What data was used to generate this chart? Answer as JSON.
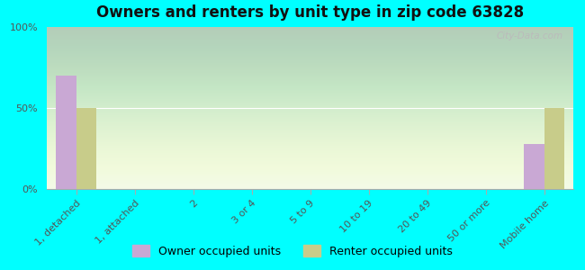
{
  "title": "Owners and renters by unit type in zip code 63828",
  "categories": [
    "1, detached",
    "1, attached",
    "2",
    "3 or 4",
    "5 to 9",
    "10 to 19",
    "20 to 49",
    "50 or more",
    "Mobile home"
  ],
  "owner_values": [
    70,
    0,
    0,
    0,
    0,
    0,
    0,
    0,
    28
  ],
  "renter_values": [
    50,
    0,
    0,
    0,
    0,
    0,
    0,
    0,
    50
  ],
  "owner_color": "#c9a8d4",
  "renter_color": "#c8cc8a",
  "background_color": "#00ffff",
  "ylim": [
    0,
    100
  ],
  "yticks": [
    0,
    50,
    100
  ],
  "ytick_labels": [
    "0%",
    "50%",
    "100%"
  ],
  "bar_width": 0.35,
  "legend_owner": "Owner occupied units",
  "legend_renter": "Renter occupied units",
  "title_fontsize": 12,
  "tick_fontsize": 8,
  "legend_fontsize": 9
}
